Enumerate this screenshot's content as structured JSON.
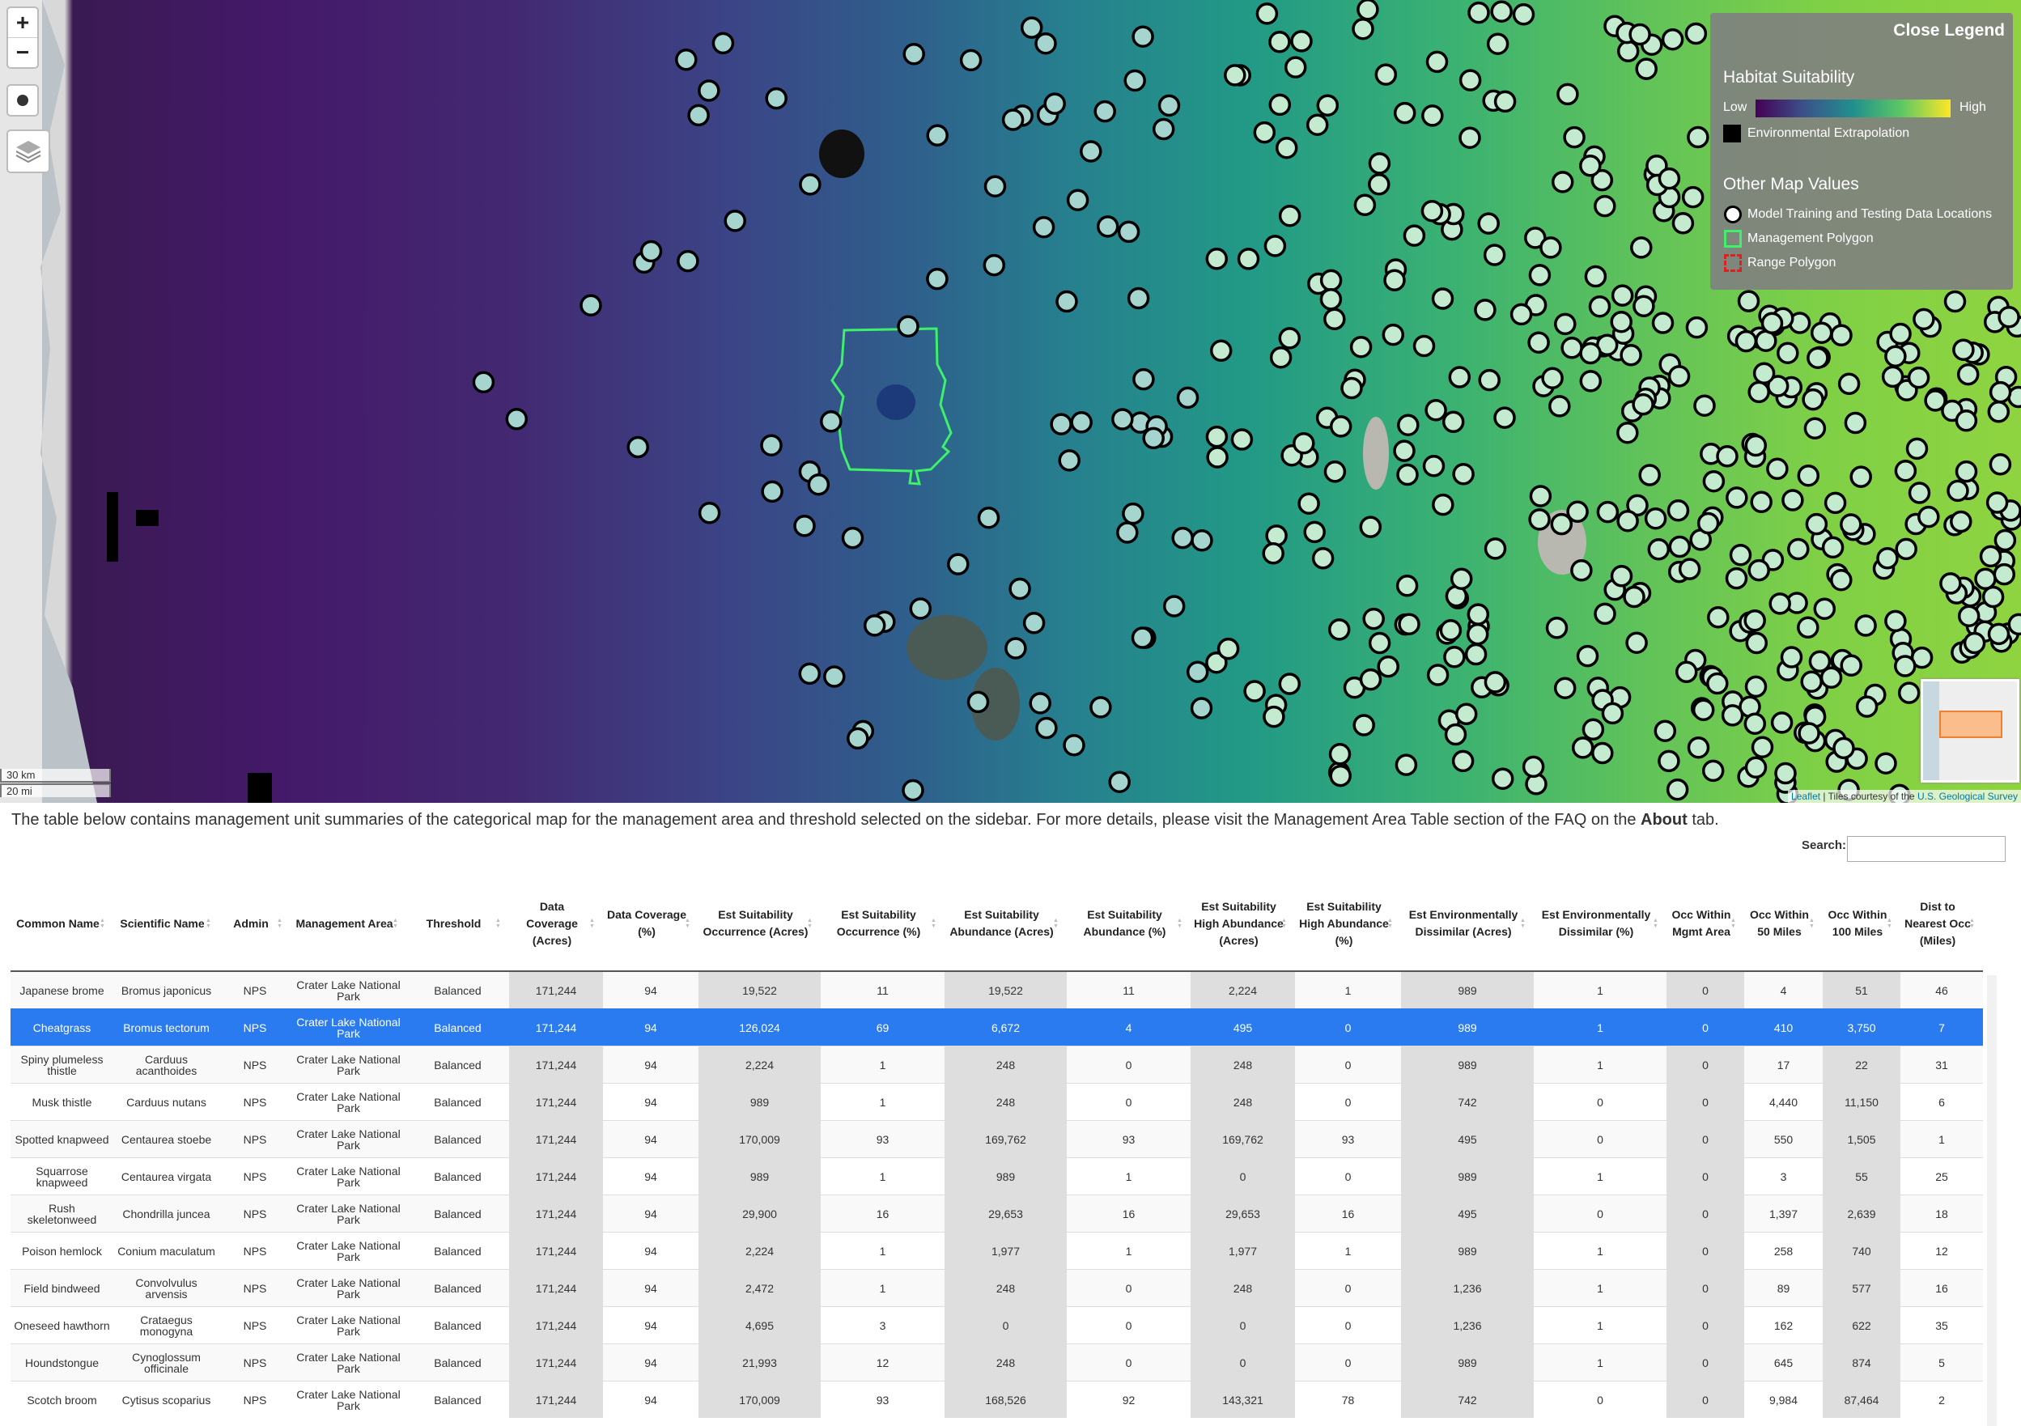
{
  "map": {
    "zoom_in": "+",
    "zoom_out": "−",
    "scale_km": "30 km",
    "scale_mi": "20 mi",
    "attribution": {
      "link": "Leaflet",
      "text": "| Tiles courtesy of the",
      "source": "U.S. Geological Survey"
    },
    "legend": {
      "close": "Close Legend",
      "title": "Habitat Suitability",
      "low": "Low",
      "high": "High",
      "extrapolation": "Environmental Extrapolation",
      "other_title": "Other Map Values",
      "points": "Model Training and Testing Data Locations",
      "management": "Management Polygon",
      "range": "Range Polygon"
    }
  },
  "intro": {
    "before": "The table below contains management unit summaries of the categorical map for the management area and threshold selected on the sidebar. For more details, please visit the Management Area Table section of the FAQ on the ",
    "bold": "About",
    "after": " tab."
  },
  "search_label": "Search:",
  "table": {
    "headers": [
      "Common Name",
      "Scientific Name",
      "Admin",
      "Management Area",
      "Threshold",
      "Data Coverage (Acres)",
      "Data Coverage (%)",
      "Est Suitability Occurrence (Acres)",
      "Est Suitability Occurrence (%)",
      "Est Suitability Abundance (Acres)",
      "Est Suitability Abundance (%)",
      "Est Suitability High Abundance (Acres)",
      "Est Suitability High Abundance (%)",
      "Est Environmentally Dissimilar (Acres)",
      "Est Environmentally Dissimilar (%)",
      "Occ Within Mgmt Area",
      "Occ Within 50 Miles",
      "Occ Within 100 Miles",
      "Dist to Nearest Occ (Miles)"
    ],
    "rows": [
      [
        "Japanese brome",
        "Bromus japonicus",
        "NPS",
        "Crater Lake National Park",
        "Balanced",
        "171,244",
        "94",
        "19,522",
        "11",
        "19,522",
        "11",
        "2,224",
        "1",
        "989",
        "1",
        "0",
        "4",
        "51",
        "46"
      ],
      [
        "Cheatgrass",
        "Bromus tectorum",
        "NPS",
        "Crater Lake National Park",
        "Balanced",
        "171,244",
        "94",
        "126,024",
        "69",
        "6,672",
        "4",
        "495",
        "0",
        "989",
        "1",
        "0",
        "410",
        "3,750",
        "7"
      ],
      [
        "Spiny plumeless thistle",
        "Carduus acanthoides",
        "NPS",
        "Crater Lake National Park",
        "Balanced",
        "171,244",
        "94",
        "2,224",
        "1",
        "248",
        "0",
        "248",
        "0",
        "989",
        "1",
        "0",
        "17",
        "22",
        "31"
      ],
      [
        "Musk thistle",
        "Carduus nutans",
        "NPS",
        "Crater Lake National Park",
        "Balanced",
        "171,244",
        "94",
        "989",
        "1",
        "248",
        "0",
        "248",
        "0",
        "742",
        "0",
        "0",
        "4,440",
        "11,150",
        "6"
      ],
      [
        "Spotted knapweed",
        "Centaurea stoebe",
        "NPS",
        "Crater Lake National Park",
        "Balanced",
        "171,244",
        "94",
        "170,009",
        "93",
        "169,762",
        "93",
        "169,762",
        "93",
        "495",
        "0",
        "0",
        "550",
        "1,505",
        "1"
      ],
      [
        "Squarrose knapweed",
        "Centaurea virgata",
        "NPS",
        "Crater Lake National Park",
        "Balanced",
        "171,244",
        "94",
        "989",
        "1",
        "989",
        "1",
        "0",
        "0",
        "989",
        "1",
        "0",
        "3",
        "55",
        "25"
      ],
      [
        "Rush skeletonweed",
        "Chondrilla juncea",
        "NPS",
        "Crater Lake National Park",
        "Balanced",
        "171,244",
        "94",
        "29,900",
        "16",
        "29,653",
        "16",
        "29,653",
        "16",
        "495",
        "0",
        "0",
        "1,397",
        "2,639",
        "18"
      ],
      [
        "Poison hemlock",
        "Conium maculatum",
        "NPS",
        "Crater Lake National Park",
        "Balanced",
        "171,244",
        "94",
        "2,224",
        "1",
        "1,977",
        "1",
        "1,977",
        "1",
        "989",
        "1",
        "0",
        "258",
        "740",
        "12"
      ],
      [
        "Field bindweed",
        "Convolvulus arvensis",
        "NPS",
        "Crater Lake National Park",
        "Balanced",
        "171,244",
        "94",
        "2,472",
        "1",
        "248",
        "0",
        "248",
        "0",
        "1,236",
        "1",
        "0",
        "89",
        "577",
        "16"
      ],
      [
        "Oneseed hawthorn",
        "Crataegus monogyna",
        "NPS",
        "Crater Lake National Park",
        "Balanced",
        "171,244",
        "94",
        "4,695",
        "3",
        "0",
        "0",
        "0",
        "0",
        "1,236",
        "1",
        "0",
        "162",
        "622",
        "35"
      ],
      [
        "Houndstongue",
        "Cynoglossum officinale",
        "NPS",
        "Crater Lake National Park",
        "Balanced",
        "171,244",
        "94",
        "21,993",
        "12",
        "248",
        "0",
        "0",
        "0",
        "989",
        "1",
        "0",
        "645",
        "874",
        "5"
      ],
      [
        "Scotch broom",
        "Cytisus scoparius",
        "NPS",
        "Crater Lake National Park",
        "Balanced",
        "171,244",
        "94",
        "170,009",
        "93",
        "168,526",
        "92",
        "143,321",
        "78",
        "742",
        "0",
        "0",
        "9,984",
        "87,464",
        "2"
      ]
    ]
  }
}
